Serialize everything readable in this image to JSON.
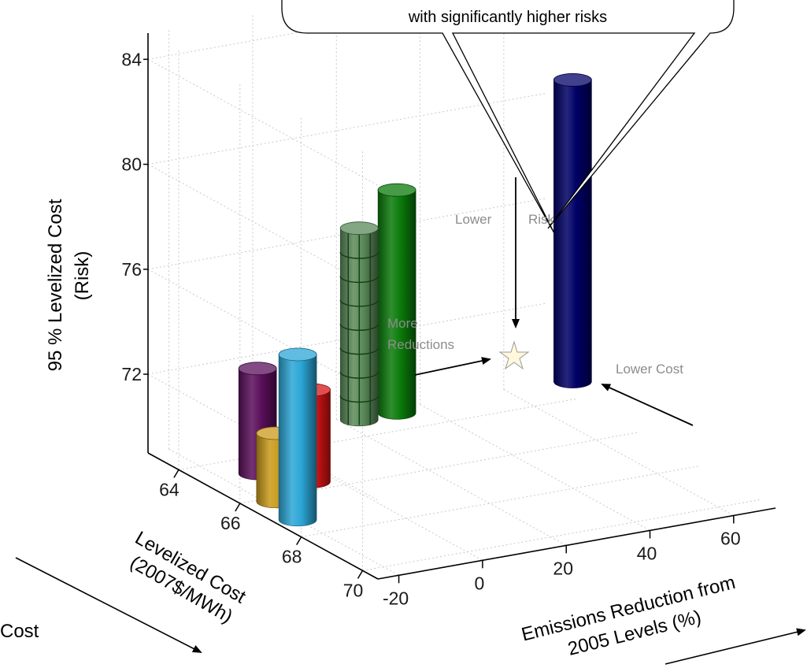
{
  "chart_data": {
    "type": "bar",
    "subtype": "3d-cylinder",
    "xlabel": "Levelized Cost (2007$/MWh)",
    "xlabel_lines": [
      "Levelized Cost",
      "(2007$/MWh)"
    ],
    "ylabel": "Emissions Reduction from 2005 Levels (%)",
    "ylabel_lines": [
      "Emissions Reduction from",
      "2005 Levels (%)"
    ],
    "zlabel": "95 % Levelized Cost (Risk)",
    "zlabel_lines": [
      "95 %  Levelized Cost",
      "(Risk)"
    ],
    "x_ticks": [
      "64",
      "66",
      "68",
      "70"
    ],
    "y_ticks": [
      "-20",
      "0",
      "20",
      "40",
      "60"
    ],
    "z_ticks": [
      "72",
      "76",
      "80",
      "84"
    ],
    "xlim": [
      63,
      70.5
    ],
    "ylim": [
      -25,
      70
    ],
    "zlim": [
      69,
      85
    ],
    "grid": true,
    "series": [
      {
        "x": 67.2,
        "y": -20,
        "z": 75.3,
        "color": "#2ba6d6"
      },
      {
        "x": 66.2,
        "y": -18,
        "z": 71.6,
        "color": "#c99a1a"
      },
      {
        "x": 64.8,
        "y": -12,
        "z": 73.0,
        "color": "#5a0f5a"
      },
      {
        "x": 65.6,
        "y": -5,
        "z": 72.5,
        "color": "#d81414"
      },
      {
        "x": 63.2,
        "y": 24,
        "z": 76.3,
        "color": "#5a8a5a",
        "pattern": "grid"
      },
      {
        "x": 63.2,
        "y": 33,
        "z": 77.5,
        "color": "#0a7a0a"
      },
      {
        "x": 63.2,
        "y": 75,
        "z": 80.5,
        "color": "#000066"
      }
    ],
    "annotations": {
      "callout": "with significantly higher risks",
      "lower": "Lower",
      "risk": "Risk",
      "more": "More",
      "reductions": "Reductions",
      "lower_cost": "Lower Cost",
      "cost": "Cost"
    }
  }
}
